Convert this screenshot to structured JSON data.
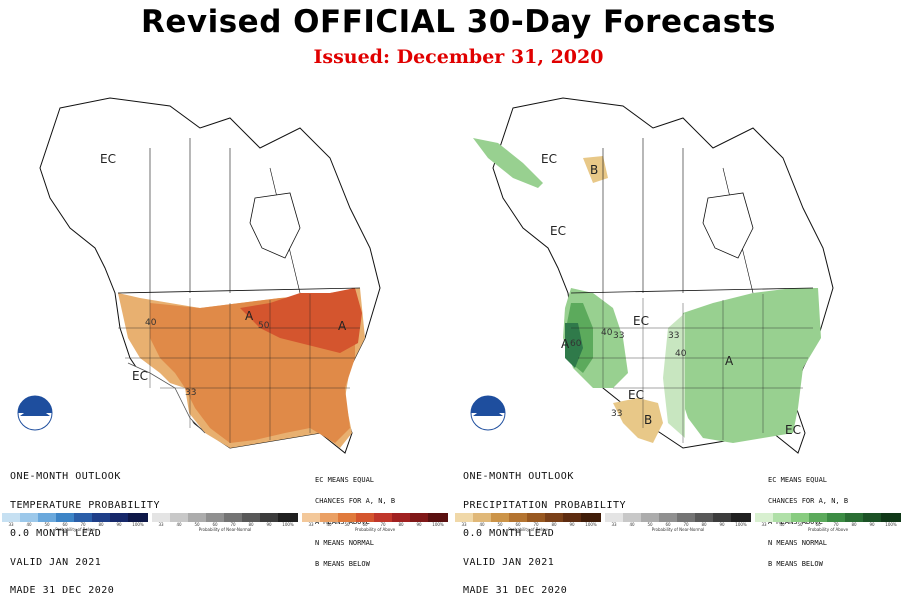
{
  "header": {
    "title": "Revised OFFICIAL 30-Day Forecasts",
    "issued": "Issued: December 31, 2020"
  },
  "colors": {
    "issued_red": "#e00000",
    "above_light": "#e8b070",
    "above_mid": "#e08a48",
    "above_strong": "#d4552e",
    "wet_light": "#c8e6c0",
    "wet_mid": "#98d090",
    "wet_strong": "#5caa5c",
    "wet_dark": "#2f7a4a",
    "dry": "#e8c888"
  },
  "temperature": {
    "lines": [
      "ONE-MONTH OUTLOOK",
      "TEMPERATURE PROBABILITY",
      "0.0 MONTH LEAD",
      "VALID JAN 2021",
      "MADE 31 DEC 2020"
    ],
    "legend_note": [
      "EC MEANS EQUAL",
      "CHANCES FOR A, N, B",
      "A MEANS ABOVE",
      "N MEANS NORMAL",
      "B MEANS BELOW"
    ],
    "labels": {
      "ec_north": "EC",
      "ec_west": "EC",
      "a_west": "A",
      "a_east": "A",
      "c40": "40",
      "c50": "50",
      "c33": "33"
    },
    "legend": {
      "below_caption": "Probability of Below",
      "normal_caption": "Probability of Near-Normal",
      "above_caption": "Probability of Above",
      "below_ticks": [
        "33",
        "40",
        "50",
        "60",
        "70",
        "80",
        "90",
        "100%"
      ],
      "normal_ticks": [
        "33",
        "40",
        "50",
        "60",
        "70",
        "80",
        "90",
        "100%"
      ],
      "above_ticks": [
        "33",
        "40",
        "50",
        "60",
        "70",
        "80",
        "90",
        "100%"
      ]
    }
  },
  "precipitation": {
    "lines": [
      "ONE-MONTH OUTLOOK",
      "PRECIPITATION PROBABILITY",
      "0.0 MONTH LEAD",
      "VALID JAN 2021",
      "MADE 31 DEC 2020"
    ],
    "legend_note": [
      "EC MEANS EQUAL",
      "CHANCES FOR A, N, B",
      "A MEANS ABOVE",
      "N MEANS NORMAL",
      "B MEANS BELOW"
    ],
    "labels": {
      "ec_north": "EC",
      "b_north": "B",
      "ec_west": "EC",
      "ec_mid": "EC",
      "ec_south": "EC",
      "ec_se": "EC",
      "a_west": "A",
      "a_east": "A",
      "b_south": "B",
      "c33a": "33",
      "c33b": "33",
      "c40a": "40",
      "c40b": "40",
      "c60": "60",
      "c33c": "33"
    },
    "legend": {
      "below_caption": "Probability of Below",
      "normal_caption": "Probability of Near-Normal",
      "above_caption": "Probability of Above",
      "below_ticks": [
        "33",
        "40",
        "50",
        "60",
        "70",
        "80",
        "90",
        "100%"
      ],
      "normal_ticks": [
        "33",
        "40",
        "50",
        "60",
        "70",
        "80",
        "90",
        "100%"
      ],
      "above_ticks": [
        "33",
        "40",
        "50",
        "60",
        "70",
        "80",
        "90",
        "100%"
      ]
    }
  }
}
